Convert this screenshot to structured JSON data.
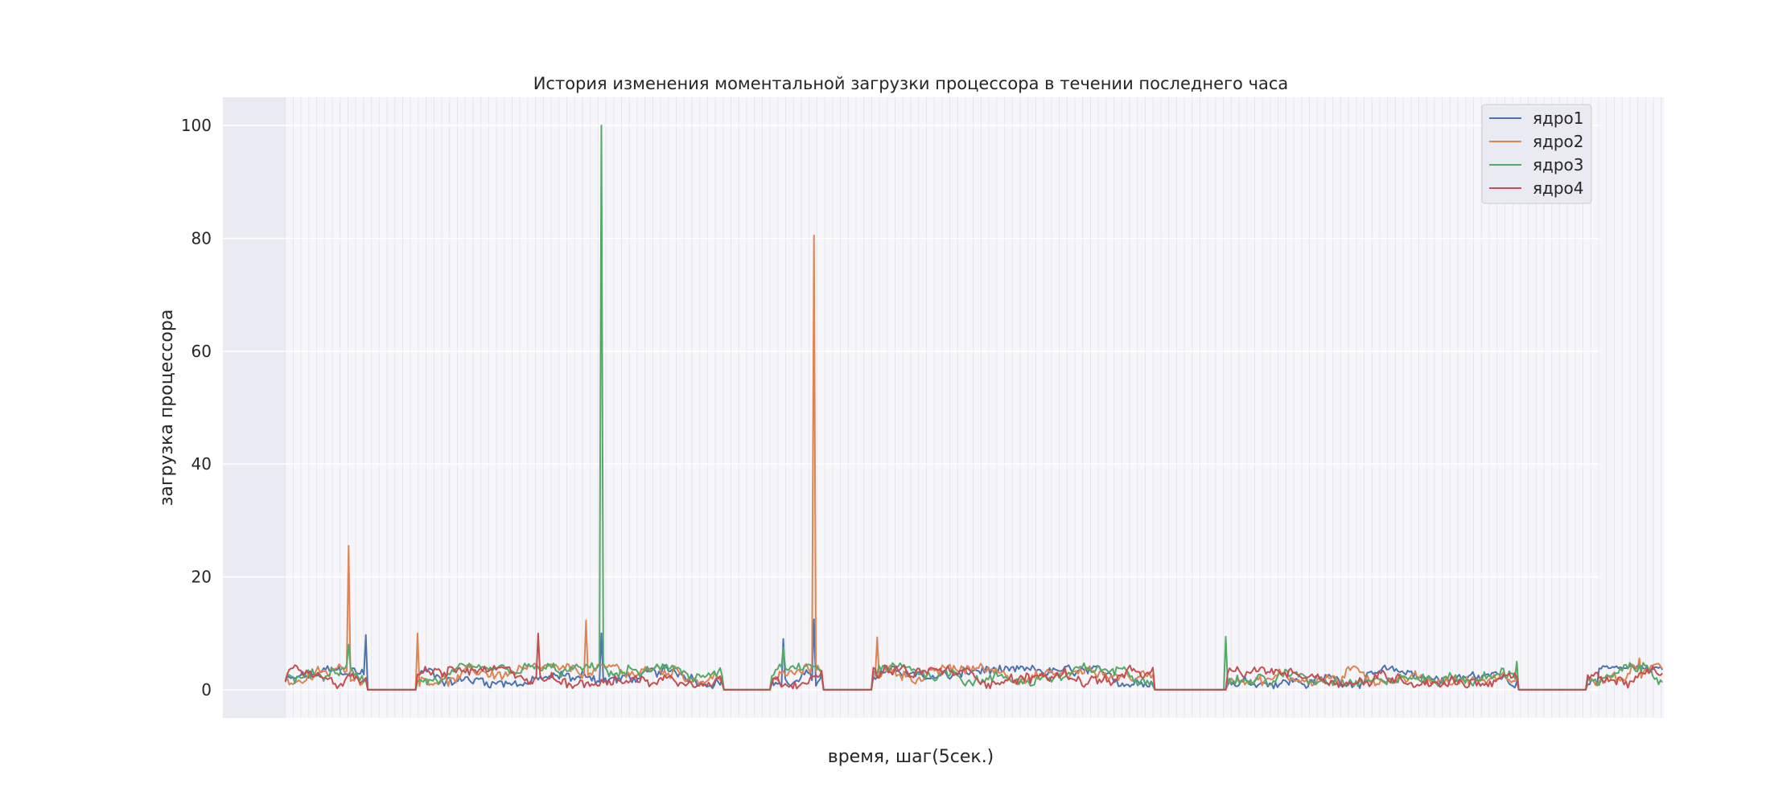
{
  "chart_data": {
    "type": "line",
    "title": "История изменения моментальной загрузки процессора в течении последнего часа",
    "xlabel": "время, шаг(5сек.)",
    "ylabel": "загрузка процессора",
    "ylim": [
      -5,
      105
    ],
    "xlim": [
      -20,
      420
    ],
    "n_points": 720,
    "y_ticks": [
      "0",
      "20",
      "40",
      "60",
      "80",
      "100"
    ],
    "grid": true,
    "legend_position": "top-right",
    "series": [
      {
        "name": "ядро1",
        "color": "#4c72b0"
      },
      {
        "name": "ядро2",
        "color": "#dd8452"
      },
      {
        "name": "ядро3",
        "color": "#55a868"
      },
      {
        "name": "ядро4",
        "color": "#c44e52"
      }
    ],
    "segments": [
      [
        0,
        26,
        "active"
      ],
      [
        26,
        42,
        "idle"
      ],
      [
        42,
        140,
        "active"
      ],
      [
        140,
        155,
        "idle"
      ],
      [
        155,
        172,
        "active"
      ],
      [
        172,
        188,
        "idle"
      ],
      [
        188,
        278,
        "active"
      ],
      [
        278,
        301,
        "idle"
      ],
      [
        301,
        394,
        "active"
      ],
      [
        394,
        416,
        "idle"
      ],
      [
        416,
        441,
        "active"
      ]
    ],
    "spikes": [
      {
        "series": "ядро2",
        "x": 20,
        "y": 25.5
      },
      {
        "series": "ядро3",
        "x": 20,
        "y": 8.0
      },
      {
        "series": "ядро1",
        "x": 26,
        "y": 9.7
      },
      {
        "series": "ядро2",
        "x": 42,
        "y": 10.0
      },
      {
        "series": "ядро4",
        "x": 81,
        "y": 10.0
      },
      {
        "series": "ядро2",
        "x": 96,
        "y": 12.3
      },
      {
        "series": "ядро3",
        "x": 101,
        "y": 100.0
      },
      {
        "series": "ядро1",
        "x": 101,
        "y": 10.0
      },
      {
        "series": "ядро3",
        "x": 159,
        "y": 7.5
      },
      {
        "series": "ядро1",
        "x": 159,
        "y": 9.0
      },
      {
        "series": "ядро2",
        "x": 169,
        "y": 80.5
      },
      {
        "series": "ядро1",
        "x": 169,
        "y": 12.5
      },
      {
        "series": "ядро2",
        "x": 189,
        "y": 9.3
      },
      {
        "series": "ядро3",
        "x": 301,
        "y": 9.4
      },
      {
        "series": "ядро3",
        "x": 394,
        "y": 5.0
      },
      {
        "series": "ядро2",
        "x": 433,
        "y": 5.6
      }
    ]
  }
}
